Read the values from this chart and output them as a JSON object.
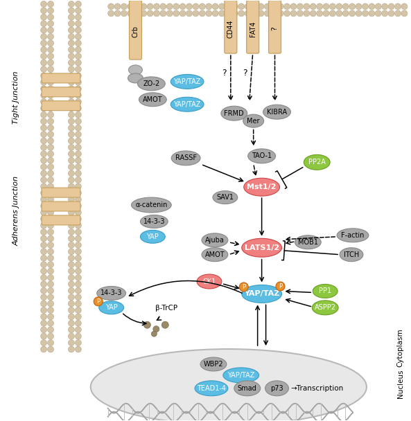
{
  "fig_width": 5.93,
  "fig_height": 6.08,
  "dpi": 100,
  "bg_color": "#ffffff",
  "gray_node": "#a8a8a8",
  "gray_edge": "#888888",
  "blue_node": "#5bbde4",
  "blue_edge": "#3a9dc4",
  "red_node": "#f08080",
  "red_edge": "#cc4444",
  "green_node": "#8dc63f",
  "green_edge": "#6a9f20",
  "orange_p": "#e8902a",
  "orange_p_edge": "#c06010",
  "membrane_bead": "#d4c4a8",
  "membrane_bead_edge": "#b8a888",
  "bar_fill": "#e8c898",
  "bar_edge": "#c8a060",
  "tj_label": "Tight Junction",
  "aj_label": "Adherens Junction",
  "cytoplasm_label": "Cytoplasm",
  "nucleus_label": "Nucleus",
  "labels": {
    "crb": "Crb",
    "zo2": "ZO-2",
    "amot_tj": "AMOT",
    "yaptaz": "YAP/TAZ",
    "alpha_cat": "α-catenin",
    "14_3_3": "14-3-3",
    "yap": "YAP",
    "rassf": "RASSF",
    "cd44": "CD44",
    "fat4": "FAT4",
    "q": "?",
    "frmd": "FRMD",
    "mer": "Mer",
    "kibra": "KIBRA",
    "tao1": "TAO-1",
    "pp2a": "PP2A",
    "mst12": "Mst1/2",
    "sav1": "SAV1",
    "ajuba": "Ajuba",
    "amot": "AMOT",
    "mob1": "MOB1",
    "factin": "F-actin",
    "lats12": "LATS1/2",
    "itch": "ITCH",
    "ck1": "CK1",
    "beta_trcp": "β-TrCP",
    "pp1": "PP1",
    "aspp2": "ASPP2",
    "wbp2": "WBP2",
    "tead14": "TEAD1-4",
    "smad": "Smad",
    "p73": "p73",
    "transcription": "→Transcription",
    "p": "P"
  }
}
